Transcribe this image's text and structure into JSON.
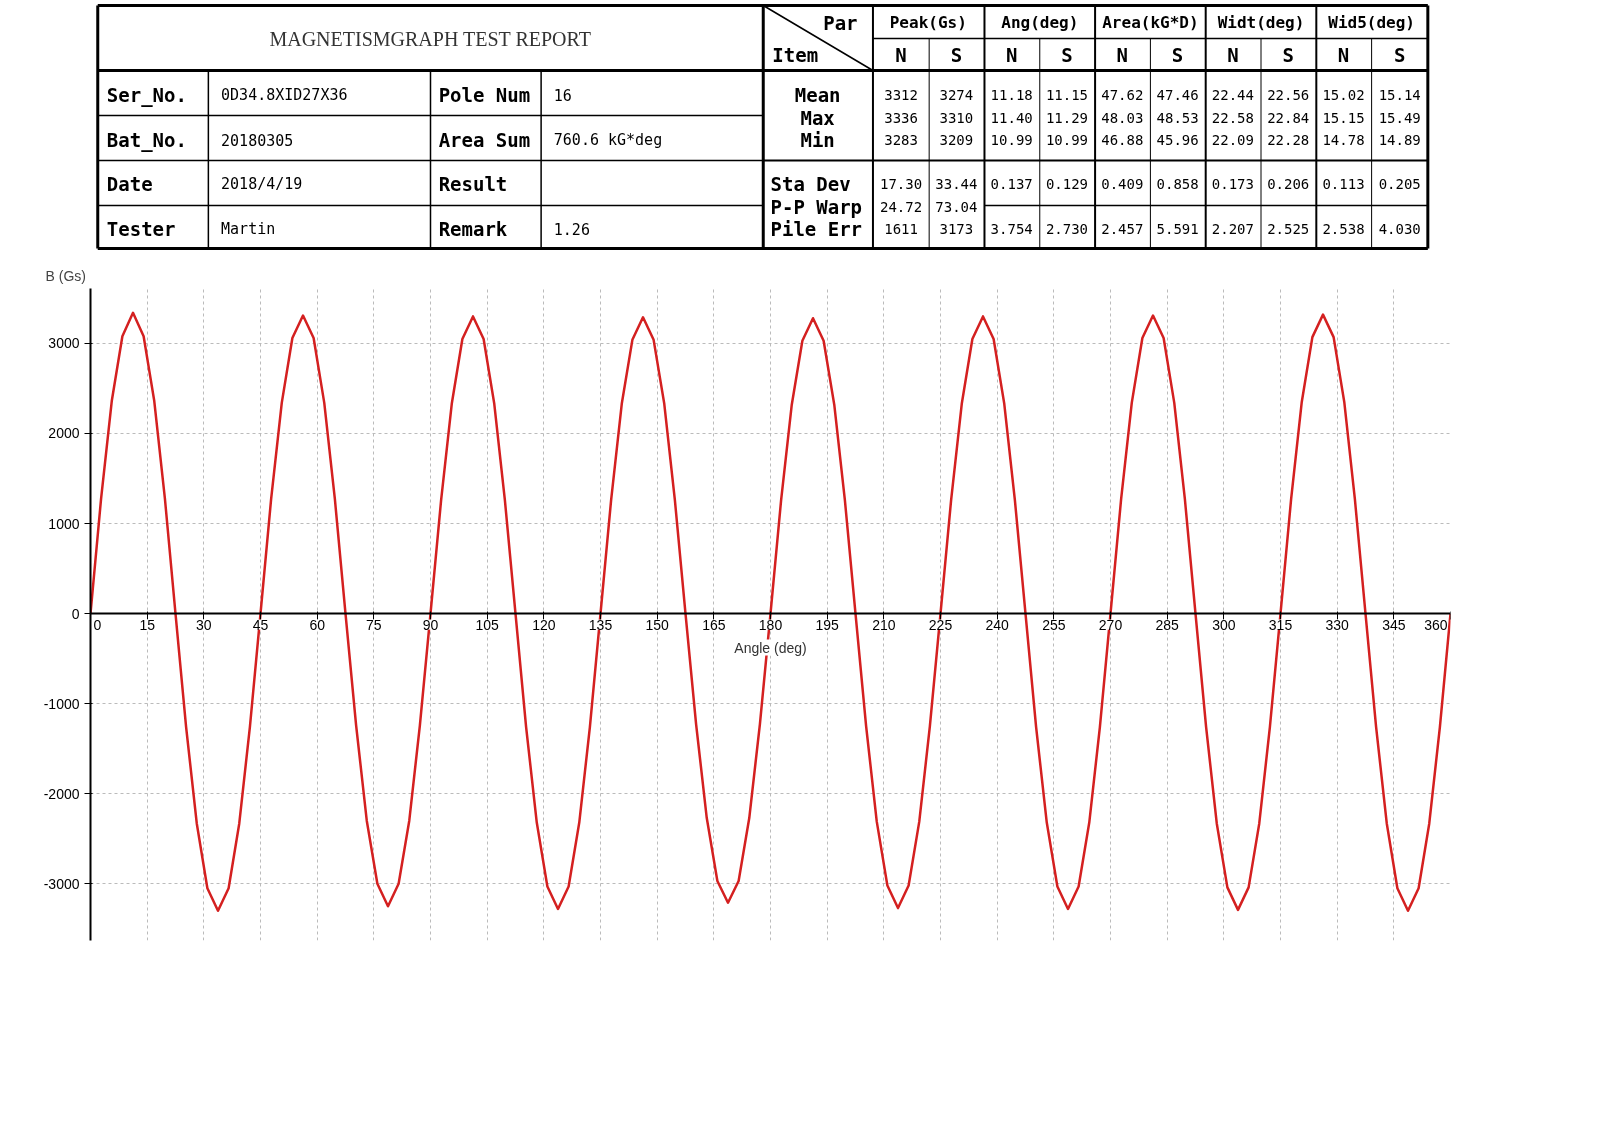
{
  "chart_data": [
    {
      "type": "other",
      "title": "MAGNETISMGRAPH TEST REPORT",
      "annotations": [
        "Ser_No.",
        "0D34.8XID27X36",
        "Pole Num",
        "16",
        "Bat_No.",
        "20180305",
        "Area Sum",
        "760.6 kG*deg",
        "Date",
        "2018/4/19",
        "Result",
        "Tester",
        "Martin",
        "Remark",
        "1.26",
        "Par",
        "Item",
        "Peak(Gs)",
        "Ang(deg)",
        "Area(kG*D)",
        "Widt(deg)",
        "Wid5(deg)",
        "N",
        "S",
        "N",
        "S",
        "N",
        "S",
        "N",
        "S",
        "N",
        "S",
        "Mean",
        "Max",
        "Min",
        "Sta Dev",
        "P-P Warp",
        "Pile Err",
        "3312",
        "3274",
        "11.18",
        "11.15",
        "47.62",
        "47.46",
        "22.44",
        "22.56",
        "15.02",
        "15.14",
        "3336",
        "3310",
        "11.40",
        "11.29",
        "48.03",
        "48.53",
        "22.58",
        "22.84",
        "15.15",
        "15.49",
        "3283",
        "3209",
        "10.99",
        "10.99",
        "46.88",
        "45.96",
        "22.09",
        "22.28",
        "14.78",
        "14.89",
        "17.30",
        "33.44",
        "0.137",
        "0.129",
        "0.409",
        "0.858",
        "0.173",
        "0.206",
        "0.113",
        "0.205",
        "24.72",
        "73.04",
        "1611",
        "3173",
        "3.754",
        "2.730",
        "2.457",
        "5.591",
        "2.207",
        "2.525",
        "2.538",
        "4.030"
      ]
    },
    {
      "type": "line",
      "xlabel": "Angle (deg)",
      "ylabel": "B (Gs)",
      "xlim": [
        0,
        360
      ],
      "ylim": [
        -3630,
        3610
      ],
      "xticks": [
        0,
        15,
        30,
        45,
        60,
        75,
        90,
        105,
        120,
        135,
        150,
        165,
        180,
        195,
        210,
        225,
        240,
        255,
        270,
        285,
        300,
        315,
        330,
        345,
        360
      ],
      "yticks": [
        -3000,
        -2000,
        -1000,
        0,
        1000,
        2000,
        3000
      ],
      "grid": true,
      "marker": "none",
      "line_style": "solid",
      "x": [
        0,
        2.81,
        5.63,
        8.44,
        11.25,
        14.06,
        16.88,
        19.69,
        22.5,
        25.31,
        28.13,
        30.94,
        33.75,
        36.56,
        39.38,
        42.19,
        45,
        47.81,
        50.63,
        53.44,
        56.25,
        59.06,
        61.88,
        64.69,
        67.5,
        70.31,
        73.13,
        75.94,
        78.75,
        81.56,
        84.38,
        87.19,
        90,
        92.81,
        95.63,
        98.44,
        101.25,
        104.06,
        106.88,
        109.69,
        112.5,
        115.31,
        118.13,
        120.94,
        123.75,
        126.56,
        129.38,
        132.19,
        135,
        137.81,
        140.63,
        143.44,
        146.25,
        149.06,
        151.88,
        154.69,
        157.5,
        160.31,
        163.13,
        165.94,
        168.75,
        171.56,
        174.38,
        177.19,
        180,
        182.81,
        185.63,
        188.44,
        191.25,
        194.06,
        196.88,
        199.69,
        202.5,
        205.31,
        208.13,
        210.94,
        213.75,
        216.56,
        219.38,
        222.19,
        225,
        227.81,
        230.63,
        233.44,
        236.25,
        239.06,
        241.88,
        244.69,
        247.5,
        250.31,
        253.13,
        255.94,
        258.75,
        261.56,
        264.38,
        267.19,
        270,
        272.81,
        275.63,
        278.44,
        281.25,
        284.06,
        286.88,
        289.69,
        292.5,
        295.31,
        298.13,
        300.94,
        303.75,
        306.56,
        309.38,
        312.19,
        315,
        317.81,
        320.63,
        323.44,
        326.25,
        329.06,
        331.88,
        334.69,
        337.5,
        340.31,
        343.13,
        345.94,
        348.75,
        351.56,
        354.38,
        357.19,
        360
      ],
      "series": [
        {
          "color": "#d42020",
          "values": [
            0,
            1280,
            2360,
            3080,
            3340,
            3080,
            2360,
            1280,
            0,
            -1260,
            -2330,
            -3050,
            -3300,
            -3050,
            -2330,
            -1260,
            0,
            1270,
            2340,
            3060,
            3310,
            3060,
            2340,
            1270,
            0,
            -1240,
            -2300,
            -3000,
            -3250,
            -3000,
            -2300,
            -1240,
            0,
            1260,
            2330,
            3050,
            3300,
            3050,
            2330,
            1260,
            0,
            -1260,
            -2320,
            -3030,
            -3280,
            -3030,
            -2320,
            -1260,
            0,
            1260,
            2330,
            3040,
            3290,
            3040,
            2330,
            1260,
            0,
            -1230,
            -2270,
            -2970,
            -3210,
            -2970,
            -2270,
            -1230,
            0,
            1260,
            2320,
            3030,
            3280,
            3030,
            2320,
            1260,
            0,
            -1250,
            -2310,
            -3020,
            -3270,
            -3020,
            -2310,
            -1250,
            0,
            1260,
            2330,
            3050,
            3300,
            3050,
            2330,
            1260,
            0,
            -1260,
            -2320,
            -3030,
            -3280,
            -3030,
            -2320,
            -1260,
            0,
            1270,
            2340,
            3060,
            3310,
            3060,
            2340,
            1270,
            0,
            -1260,
            -2330,
            -3040,
            -3290,
            -3040,
            -2330,
            -1260,
            0,
            1270,
            2350,
            3070,
            3320,
            3070,
            2350,
            1270,
            0,
            -1260,
            -2330,
            -3050,
            -3300,
            -3050,
            -2330,
            -1260,
            0
          ]
        }
      ]
    }
  ]
}
